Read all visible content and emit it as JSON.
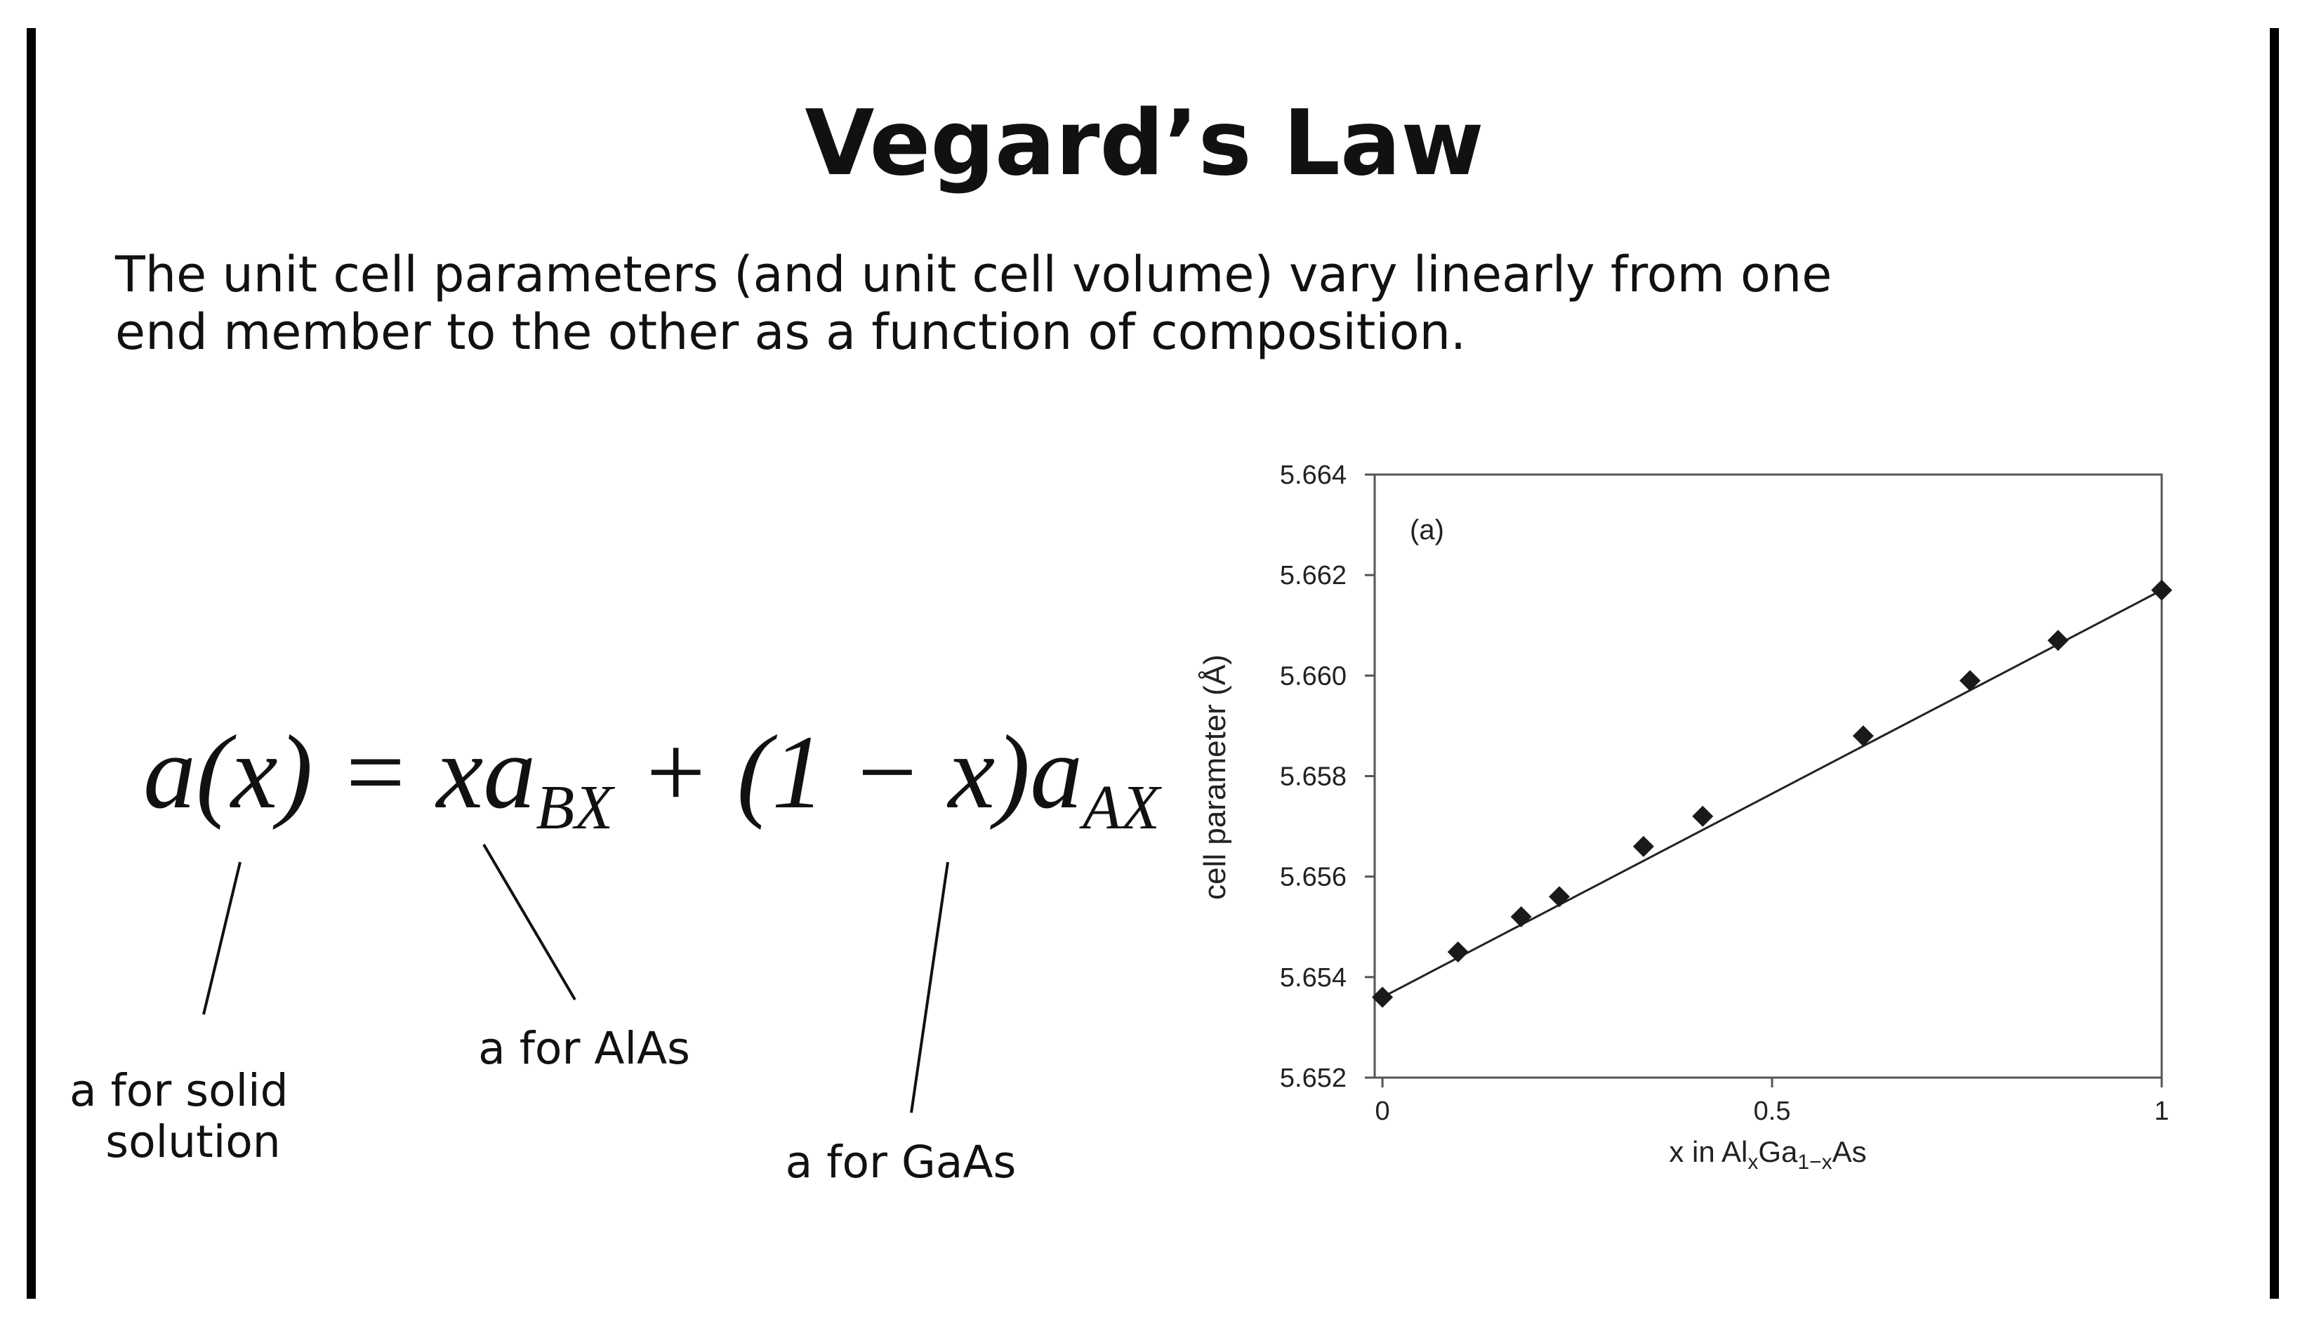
{
  "title": "Vegard’s Law",
  "body_lines": [
    "The unit cell parameters (and unit cell volume) vary linearly from one",
    "end member to the other as a function of composition."
  ],
  "equation": [
    {
      "text": "a(x) = xa",
      "sub": false
    },
    {
      "text": "BX",
      "sub": true
    },
    {
      "text": " + (1 − x)a",
      "sub": false
    },
    {
      "text": "AX",
      "sub": true
    }
  ],
  "annotations": [
    {
      "lines": [
        "a for solid",
        "solution"
      ]
    },
    {
      "lines": [
        "a for AlAs"
      ]
    },
    {
      "lines": [
        "a for GaAs"
      ]
    }
  ],
  "chart_data": {
    "type": "scatter",
    "panel_label": "(a)",
    "xlabel": [
      {
        "text": "x in Al",
        "sub": false
      },
      {
        "text": "x",
        "sub": true
      },
      {
        "text": "Ga",
        "sub": false
      },
      {
        "text": "1−x",
        "sub": true
      },
      {
        "text": "As",
        "sub": false
      }
    ],
    "ylabel": "cell parameter (Å)",
    "x": [
      0,
      0.097,
      0.178,
      0.227,
      0.335,
      0.411,
      0.617,
      0.754,
      0.867,
      1
    ],
    "values": [
      5.6536,
      5.6545,
      5.6552,
      5.6556,
      5.6566,
      5.6572,
      5.6588,
      5.6599,
      5.6607,
      5.6617
    ],
    "color": "#1a1a1a",
    "fit": {
      "x": [
        0,
        1
      ],
      "values": [
        5.6536,
        5.6617
      ],
      "color": "#222222"
    },
    "xlim": [
      -0.01,
      1
    ],
    "ylim": [
      5.652,
      5.664
    ],
    "xticks": [
      0,
      0.5,
      1
    ],
    "yticks": [
      5.652,
      5.654,
      5.656,
      5.658,
      {
        "value": 5.66,
        "label": "5.660"
      },
      5.662,
      5.664
    ]
  }
}
